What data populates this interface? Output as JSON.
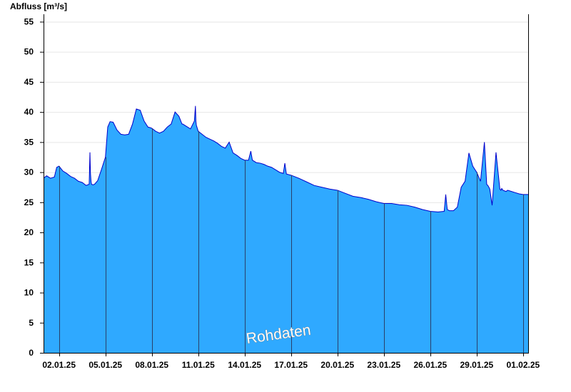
{
  "chart_data": {
    "type": "area",
    "ylabel": "Abfluss [m³/s]",
    "watermark": "Rohdaten",
    "ylim": [
      0,
      56
    ],
    "yticks": [
      0,
      5,
      10,
      15,
      20,
      25,
      30,
      35,
      40,
      45,
      50,
      55
    ],
    "xlim": [
      1.0,
      32.33
    ],
    "xticks": [
      {
        "t": 2,
        "label": "02.01.25"
      },
      {
        "t": 5,
        "label": "05.01.25"
      },
      {
        "t": 8,
        "label": "08.01.25"
      },
      {
        "t": 11,
        "label": "11.01.25"
      },
      {
        "t": 14,
        "label": "14.01.25"
      },
      {
        "t": 17,
        "label": "17.01.25"
      },
      {
        "t": 20,
        "label": "20.01.25"
      },
      {
        "t": 23,
        "label": "23.01.25"
      },
      {
        "t": 26,
        "label": "26.01.25"
      },
      {
        "t": 29,
        "label": "29.01.25"
      },
      {
        "t": 32,
        "label": "01.02.25"
      }
    ],
    "grid": true,
    "colors": {
      "fill": "#2fa9ff",
      "line": "#0000cc",
      "separator": "#2a3f6a",
      "grid": "#e6e6e6"
    },
    "series": [
      {
        "x": [
          1.0,
          1.2,
          1.45,
          1.7,
          1.85,
          2.0,
          2.25,
          2.5,
          2.75,
          3.0,
          3.25,
          3.5,
          3.75,
          3.95,
          4.0,
          4.03,
          4.07,
          4.1,
          4.2,
          4.3,
          4.5,
          4.75,
          5.0,
          5.15,
          5.3,
          5.5,
          5.75,
          6.0,
          6.25,
          6.5,
          6.75,
          7.0,
          7.25,
          7.5,
          7.75,
          7.9,
          8.0,
          8.25,
          8.5,
          8.75,
          9.0,
          9.25,
          9.5,
          9.75,
          9.95,
          10.0,
          10.25,
          10.5,
          10.75,
          10.82,
          10.85,
          10.88,
          11.0,
          11.25,
          11.5,
          11.75,
          12.0,
          12.25,
          12.5,
          12.75,
          13.0,
          13.25,
          13.5,
          13.75,
          14.0,
          14.25,
          14.4,
          14.5,
          14.75,
          15.0,
          15.25,
          15.5,
          15.75,
          16.0,
          16.25,
          16.5,
          16.6,
          16.7,
          17.0,
          17.5,
          18.0,
          18.5,
          19.0,
          19.5,
          20.0,
          20.5,
          21.0,
          21.5,
          22.0,
          22.5,
          23.0,
          23.5,
          24.0,
          24.5,
          25.0,
          25.5,
          26.0,
          26.5,
          26.9,
          27.0,
          27.1,
          27.25,
          27.5,
          27.75,
          28.0,
          28.25,
          28.5,
          28.75,
          29.0,
          29.25,
          29.5,
          29.65,
          29.75,
          29.85,
          30.0,
          30.25,
          30.5,
          30.57,
          30.62,
          30.7,
          30.9,
          31.0,
          31.25,
          31.5,
          31.75,
          32.0,
          32.33
        ],
        "values": [
          29.0,
          29.4,
          29.0,
          29.2,
          30.8,
          31.0,
          30.2,
          29.8,
          29.3,
          29.0,
          28.5,
          28.3,
          27.8,
          28.0,
          33.3,
          30.0,
          28.5,
          28.0,
          27.9,
          28.0,
          28.6,
          30.5,
          32.5,
          37.5,
          38.4,
          38.3,
          37.0,
          36.3,
          36.2,
          36.3,
          38.0,
          40.5,
          40.3,
          38.5,
          37.5,
          37.4,
          37.3,
          36.8,
          36.5,
          36.8,
          37.5,
          38.0,
          40.0,
          39.3,
          38.0,
          38.0,
          37.6,
          37.2,
          38.5,
          41.0,
          38.5,
          37.8,
          36.8,
          36.3,
          35.8,
          35.5,
          35.2,
          34.8,
          34.3,
          34.0,
          35.0,
          33.2,
          32.8,
          32.3,
          32.0,
          32.0,
          33.5,
          32.0,
          31.6,
          31.5,
          31.3,
          31.0,
          30.8,
          30.4,
          30.0,
          29.8,
          31.5,
          29.7,
          29.5,
          29.0,
          28.4,
          27.8,
          27.5,
          27.2,
          27.0,
          26.5,
          26.0,
          25.8,
          25.5,
          25.1,
          24.8,
          24.8,
          24.6,
          24.5,
          24.2,
          23.8,
          23.5,
          23.4,
          23.5,
          26.3,
          23.8,
          23.6,
          23.6,
          24.2,
          27.5,
          28.5,
          33.2,
          31.0,
          30.0,
          28.5,
          35.0,
          28.0,
          27.7,
          27.2,
          24.5,
          33.3,
          27.2,
          27.0,
          27.3,
          27.0,
          26.8,
          27.0,
          26.8,
          26.6,
          26.4,
          26.3,
          26.3
        ]
      }
    ]
  }
}
